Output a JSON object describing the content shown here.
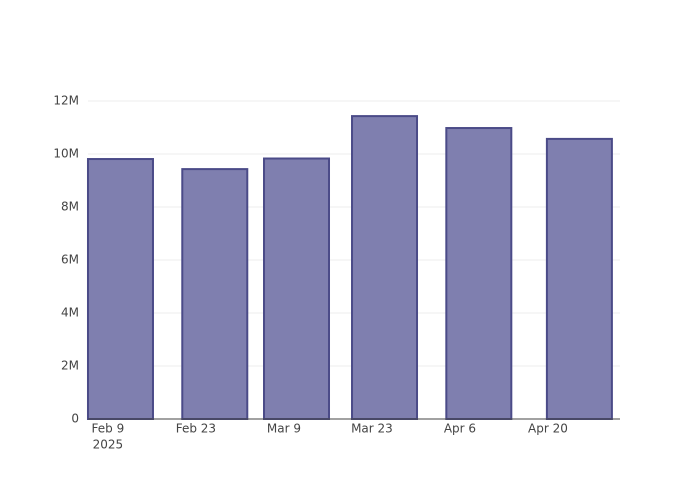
{
  "chart_data": {
    "type": "bar",
    "x": [
      "2025-02-11",
      "2025-02-26",
      "2025-03-11",
      "2025-03-25",
      "2025-04-09",
      "2025-04-25"
    ],
    "values": [
      9810000,
      9430000,
      9830000,
      11430000,
      10980000,
      10570000
    ],
    "color": "#7f7faf",
    "edgecolor": "#4b4b88",
    "xlim": [
      "2025-02-05T20:00:00Z",
      "2025-05-01T11:00:00Z"
    ],
    "xticks": [
      {
        "value": "2025-02-09",
        "label": "Feb 9"
      },
      {
        "value": "2025-02-23",
        "label": "Feb 23"
      },
      {
        "value": "2025-03-09",
        "label": "Mar 9"
      },
      {
        "value": "2025-03-23",
        "label": "Mar 23"
      },
      {
        "value": "2025-04-06",
        "label": "Apr 6"
      },
      {
        "value": "2025-04-20",
        "label": "Apr 20"
      }
    ],
    "x_year_label": "2025",
    "ylim": [
      0,
      12000000
    ],
    "yticks": [
      0,
      {
        "value": 2000000,
        "label": "2M"
      },
      {
        "value": 4000000,
        "label": "4M"
      },
      {
        "value": 6000000,
        "label": "6M"
      },
      {
        "value": 8000000,
        "label": "8M"
      },
      {
        "value": 10000000,
        "label": "10M"
      },
      {
        "value": 12000000,
        "label": "12M"
      }
    ],
    "grid": true
  }
}
